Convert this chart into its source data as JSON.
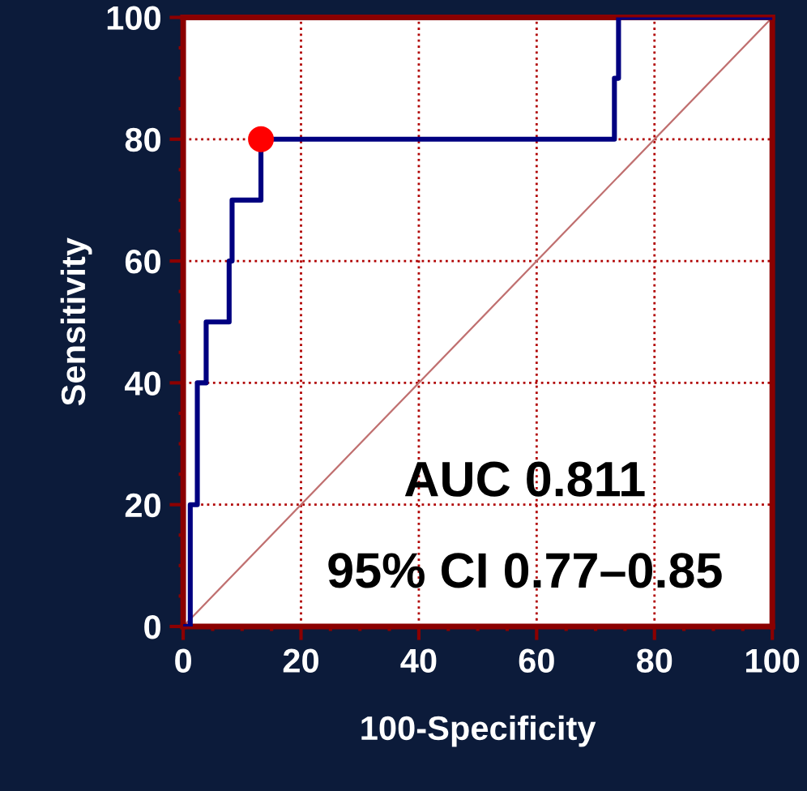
{
  "chart_data": {
    "type": "line",
    "xlabel": "100-Specificity",
    "ylabel": "Sensitivity",
    "series": [
      {
        "color": "#000080",
        "x": [
          0,
          1.2,
          1.2,
          2.4,
          2.4,
          3.9,
          3.9,
          7.8,
          7.8,
          8.3,
          8.3,
          13.2,
          13.2,
          73.2,
          73.2,
          73.9,
          73.9,
          100
        ],
        "values": [
          0,
          0,
          20,
          20,
          40,
          40,
          50,
          50,
          60,
          60,
          70,
          70,
          80,
          80,
          90,
          90,
          100,
          100
        ]
      },
      {
        "type": "line",
        "color": "#c07070",
        "x": [
          0,
          100
        ],
        "values": [
          0,
          100
        ]
      },
      {
        "type": "scatter",
        "color": "#ff0000",
        "marker": "circle",
        "x": [
          13.2
        ],
        "values": [
          80
        ]
      }
    ],
    "xlim": [
      0,
      100
    ],
    "ylim": [
      0,
      100
    ],
    "xticks": [
      0,
      20,
      40,
      60,
      80,
      100
    ],
    "yticks": [
      0,
      20,
      40,
      60,
      80,
      100
    ],
    "grid": true,
    "annotations": [
      "AUC 0.811",
      "95% CI 0.77–0.85"
    ]
  }
}
